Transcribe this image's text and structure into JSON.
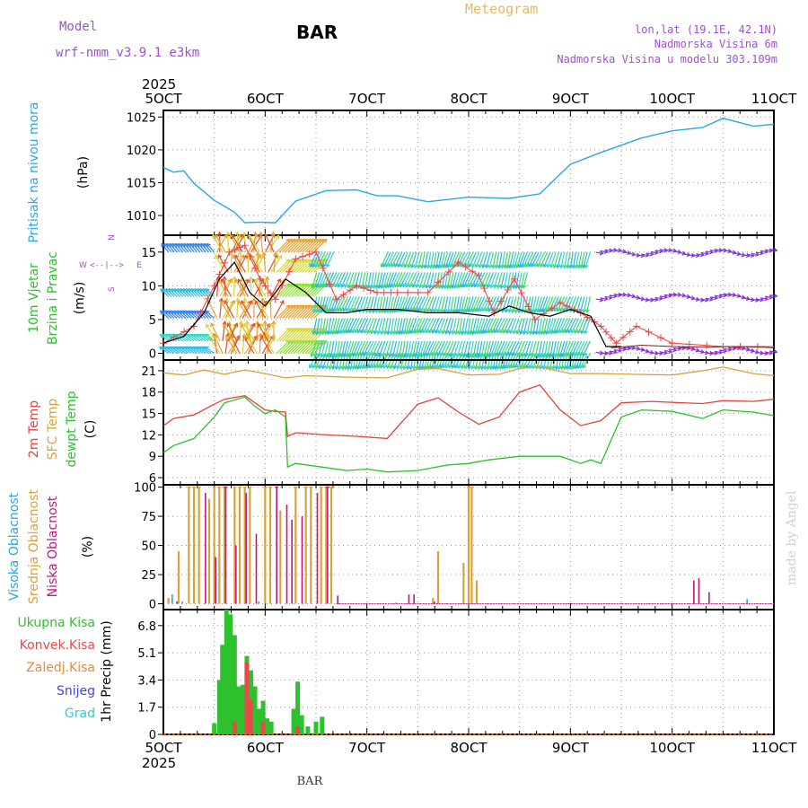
{
  "header": {
    "model_label": "Model",
    "model_name": "wrf-nmm_v3.9.1 e3km",
    "station_title": "BAR",
    "meteogram_label": "Meteogram",
    "lonlat": "lon,lat (19.1E, 42.1N)",
    "elevation": "Nadmorska Visina 6m",
    "model_elevation": "Nadmorska Visina u modelu 303.109m",
    "footer_station": "BAR",
    "credit": "made by Angel"
  },
  "colors": {
    "pressure": "#29a8e0",
    "temp2m": "#e8413c",
    "sfc_temp": "#d9a23b",
    "dewpt": "#2dc22d",
    "wind_speed_line": "#000000",
    "gust": "#e84a4a",
    "cloud_high": "#29a8e0",
    "cloud_mid": "#d9a23b",
    "cloud_low": "#c2187e",
    "precip_total": "#2dc22d",
    "precip_conv": "#e84a4a",
    "precip_frozen": "#e88a3a",
    "snow": "#4646d8",
    "graupel": "#3cc8c8",
    "model_text": "#a050d0",
    "meteogram_text": "#e8b860"
  },
  "time_axis": {
    "year": "2025",
    "labels": [
      "5OCT",
      "6OCT",
      "7OCT",
      "8OCT",
      "9OCT",
      "10OCT",
      "11OCT"
    ]
  },
  "chart_data": [
    {
      "type": "line",
      "panel": "pressure",
      "ylabel": "Pritisak na nivou mora",
      "unit": "(hPa)",
      "ylim": [
        1007,
        1026
      ],
      "yticks": [
        1010,
        1015,
        1020,
        1025
      ],
      "x": [
        5.0,
        5.1,
        5.2,
        5.3,
        5.5,
        5.7,
        5.8,
        5.95,
        6.1,
        6.3,
        6.6,
        6.9,
        7.1,
        7.3,
        7.6,
        8.0,
        8.4,
        8.7,
        9.0,
        9.3,
        9.7,
        10.0,
        10.3,
        10.5,
        10.6,
        10.8,
        11.0
      ],
      "values": [
        1017.3,
        1016.6,
        1016.8,
        1014.9,
        1012.3,
        1010.5,
        1008.9,
        1009.0,
        1008.9,
        1012.2,
        1013.8,
        1013.9,
        1013.0,
        1013.0,
        1012.1,
        1012.8,
        1012.6,
        1013.3,
        1017.8,
        1019.6,
        1021.8,
        1022.9,
        1023.4,
        1024.8,
        1024.4,
        1023.6,
        1023.9
      ]
    },
    {
      "type": "line",
      "panel": "wind",
      "ylabel": [
        "10m Vjetar",
        "Brzina i Pravac"
      ],
      "unit": "(m/s)",
      "compass": {
        "west": "W",
        "east": "E",
        "arrow": "<--|-->",
        "north": "N",
        "south": "S"
      },
      "ylim": [
        -1,
        17.5
      ],
      "yticks": [
        0,
        5,
        10,
        15
      ],
      "speed_x": [
        5.0,
        5.2,
        5.4,
        5.55,
        5.7,
        5.85,
        6.0,
        6.2,
        6.4,
        6.6,
        6.8,
        7.0,
        7.3,
        7.6,
        7.9,
        8.2,
        8.4,
        8.6,
        8.8,
        9.0,
        9.2,
        9.35,
        9.5
      ],
      "speed": [
        1.5,
        2.5,
        6.0,
        11.0,
        13.5,
        9.0,
        7.0,
        11.0,
        9.0,
        6.0,
        6.0,
        6.5,
        6.5,
        6.0,
        6.0,
        5.5,
        7.0,
        6.0,
        5.5,
        6.5,
        5.5,
        1.0,
        1.0
      ],
      "gust_x": [
        5.0,
        5.3,
        5.5,
        5.65,
        5.8,
        5.95,
        6.1,
        6.3,
        6.5,
        6.7,
        6.9,
        7.1,
        7.3,
        7.6,
        7.9,
        8.1,
        8.25,
        8.45,
        8.65,
        8.9,
        9.1,
        9.3,
        9.45,
        9.65,
        10.0,
        10.5,
        11.0
      ],
      "gust": [
        1.5,
        4.0,
        10.0,
        15.0,
        16.0,
        11.0,
        8.0,
        14.0,
        15.0,
        8.0,
        10.0,
        9.0,
        9.0,
        9.0,
        13.5,
        11.5,
        6.0,
        11.0,
        5.0,
        7.5,
        6.0,
        4.0,
        1.5,
        4.0,
        1.5,
        1.0,
        1.0
      ],
      "tail_x": [
        9.4,
        9.7,
        10.0,
        10.3,
        10.6,
        10.9,
        11.0
      ],
      "tail_speed": [
        0.8,
        1.2,
        1.0,
        0.9,
        1.0,
        0.9,
        0.8
      ],
      "lanes": [
        0,
        1.8,
        5.2,
        8.4,
        12.0,
        15.0
      ]
    },
    {
      "type": "line",
      "panel": "temperature",
      "ylabel": [
        "2m Temp",
        "SFC Temp",
        "dewpt Temp"
      ],
      "unit": "(C)",
      "ylim": [
        5,
        22.5
      ],
      "yticks": [
        6,
        9,
        12,
        15,
        18,
        21
      ],
      "series": [
        {
          "name": "2m Temp",
          "x": [
            5.0,
            5.1,
            5.3,
            5.5,
            5.6,
            5.8,
            5.9,
            6.0,
            6.1,
            6.2,
            6.22,
            6.3,
            6.6,
            6.9,
            7.2,
            7.5,
            7.7,
            7.9,
            8.1,
            8.3,
            8.5,
            8.7,
            8.9,
            9.1,
            9.3,
            9.5,
            9.8,
            10.1,
            10.3,
            10.5,
            10.8,
            11.0
          ],
          "values": [
            13.3,
            14.3,
            14.8,
            16.3,
            17.0,
            17.5,
            16.5,
            15.5,
            15.3,
            15.2,
            11.8,
            12.3,
            12.0,
            11.8,
            11.5,
            16.3,
            17.2,
            15.2,
            13.5,
            14.5,
            18.0,
            19.0,
            15.5,
            13.3,
            14.0,
            16.5,
            16.7,
            16.5,
            16.4,
            16.8,
            16.7,
            17.0
          ]
        },
        {
          "name": "SFC Temp",
          "x": [
            5.0,
            5.2,
            5.4,
            5.6,
            5.8,
            6.0,
            6.2,
            6.4,
            6.8,
            7.2,
            7.5,
            7.7,
            8.0,
            8.3,
            8.5,
            8.7,
            9.0,
            9.3,
            9.6,
            10.0,
            10.3,
            10.5,
            10.8,
            11.0
          ],
          "values": [
            20.7,
            20.4,
            21.1,
            20.5,
            21.1,
            20.6,
            20.0,
            20.3,
            20.1,
            20.0,
            21.2,
            21.3,
            20.4,
            20.5,
            21.3,
            21.5,
            20.6,
            20.6,
            20.5,
            20.4,
            21.0,
            21.5,
            20.6,
            20.3
          ]
        },
        {
          "name": "dewpt Temp",
          "x": [
            5.0,
            5.1,
            5.3,
            5.5,
            5.6,
            5.8,
            5.9,
            6.0,
            6.1,
            6.2,
            6.22,
            6.3,
            6.5,
            6.8,
            7.0,
            7.2,
            7.5,
            7.8,
            8.0,
            8.2,
            8.5,
            8.7,
            8.9,
            9.1,
            9.2,
            9.3,
            9.5,
            9.7,
            10.0,
            10.3,
            10.5,
            10.8,
            11.0
          ],
          "values": [
            9.5,
            10.5,
            11.5,
            14.5,
            16.5,
            17.3,
            16.0,
            15.0,
            15.5,
            14.5,
            7.5,
            8.0,
            7.6,
            7.0,
            7.2,
            6.8,
            7.0,
            7.8,
            8.0,
            8.5,
            9.0,
            9.0,
            9.0,
            8.0,
            8.5,
            8.0,
            14.5,
            15.5,
            15.3,
            14.3,
            15.5,
            15.2,
            14.7
          ]
        }
      ]
    },
    {
      "type": "bar",
      "panel": "cloud",
      "ylabel": [
        "Visoka Oblacnost",
        "Srednja Oblacnost",
        "Niska Oblacnost"
      ],
      "unit": "(%)",
      "ylim": [
        -5,
        102
      ],
      "yticks": [
        0,
        25,
        50,
        75,
        100
      ],
      "series": [
        {
          "name": "Visoka Oblacnost",
          "bars": [
            [
              5.1,
              8
            ],
            [
              5.2,
              2
            ],
            [
              5.95,
              2
            ],
            [
              7.3,
              1
            ],
            [
              10.75,
              4
            ]
          ]
        },
        {
          "name": "Srednja Oblacnost",
          "bars": [
            [
              5.05,
              5
            ],
            [
              5.15,
              45
            ],
            [
              5.25,
              100
            ],
            [
              5.3,
              100
            ],
            [
              5.35,
              100
            ],
            [
              5.45,
              90
            ],
            [
              5.5,
              100
            ],
            [
              5.55,
              100
            ],
            [
              5.6,
              100
            ],
            [
              5.7,
              100
            ],
            [
              5.75,
              100
            ],
            [
              5.8,
              100
            ],
            [
              5.85,
              100
            ],
            [
              6.0,
              100
            ],
            [
              6.05,
              100
            ],
            [
              6.15,
              80
            ],
            [
              6.3,
              100
            ],
            [
              6.4,
              100
            ],
            [
              6.45,
              100
            ],
            [
              6.55,
              100
            ],
            [
              6.6,
              100
            ],
            [
              6.65,
              100
            ],
            [
              7.65,
              5
            ],
            [
              7.7,
              45
            ],
            [
              7.95,
              35
            ],
            [
              8.0,
              100
            ],
            [
              8.03,
              100
            ],
            [
              8.08,
              20
            ]
          ]
        },
        {
          "name": "Niska Oblacnost",
          "bars": [
            [
              5.12,
              2
            ],
            [
              5.4,
              95
            ],
            [
              5.5,
              40
            ],
            [
              5.6,
              100
            ],
            [
              5.7,
              50
            ],
            [
              5.8,
              95
            ],
            [
              5.9,
              60
            ],
            [
              6.1,
              100
            ],
            [
              6.2,
              85
            ],
            [
              6.25,
              72
            ],
            [
              6.35,
              75
            ],
            [
              6.5,
              95
            ],
            [
              6.6,
              100
            ],
            [
              6.7,
              7
            ],
            [
              7.4,
              8
            ],
            [
              7.45,
              8
            ],
            [
              7.65,
              2
            ],
            [
              10.2,
              20
            ],
            [
              10.25,
              22
            ],
            [
              10.35,
              10
            ]
          ]
        }
      ]
    },
    {
      "type": "bar",
      "panel": "precip",
      "ylabel": [
        "Ukupna Kisa",
        "Konvek.Kisa",
        "Zaledj.Kisa",
        "Snijeg",
        "Grad",
        "1hr Precip (mm)"
      ],
      "unit": "(mm)",
      "ylim": [
        0,
        7.8
      ],
      "yticks": [
        0,
        1.7,
        3.4,
        5.1,
        6.8
      ],
      "series": [
        {
          "name": "Ukupna Kisa",
          "bars": [
            [
              5.5,
              0.7
            ],
            [
              5.55,
              3.4
            ],
            [
              5.58,
              5.6
            ],
            [
              5.62,
              7.8
            ],
            [
              5.66,
              7.5
            ],
            [
              5.7,
              6.2
            ],
            [
              5.74,
              3.0
            ],
            [
              5.78,
              3.1
            ],
            [
              5.82,
              4.9
            ],
            [
              5.86,
              4.0
            ],
            [
              5.9,
              3.0
            ],
            [
              5.94,
              1.6
            ],
            [
              5.98,
              2.1
            ],
            [
              6.02,
              1.0
            ],
            [
              6.06,
              0.8
            ],
            [
              6.28,
              1.6
            ],
            [
              6.32,
              3.3
            ],
            [
              6.36,
              1.2
            ],
            [
              6.42,
              0.5
            ],
            [
              6.5,
              0.8
            ],
            [
              6.56,
              1.1
            ]
          ]
        },
        {
          "name": "Konvek.Kisa",
          "bars": [
            [
              5.7,
              0.8
            ],
            [
              5.82,
              4.5
            ],
            [
              5.86,
              2.2
            ],
            [
              5.98,
              0.8
            ],
            [
              6.32,
              0.5
            ]
          ]
        }
      ]
    }
  ]
}
